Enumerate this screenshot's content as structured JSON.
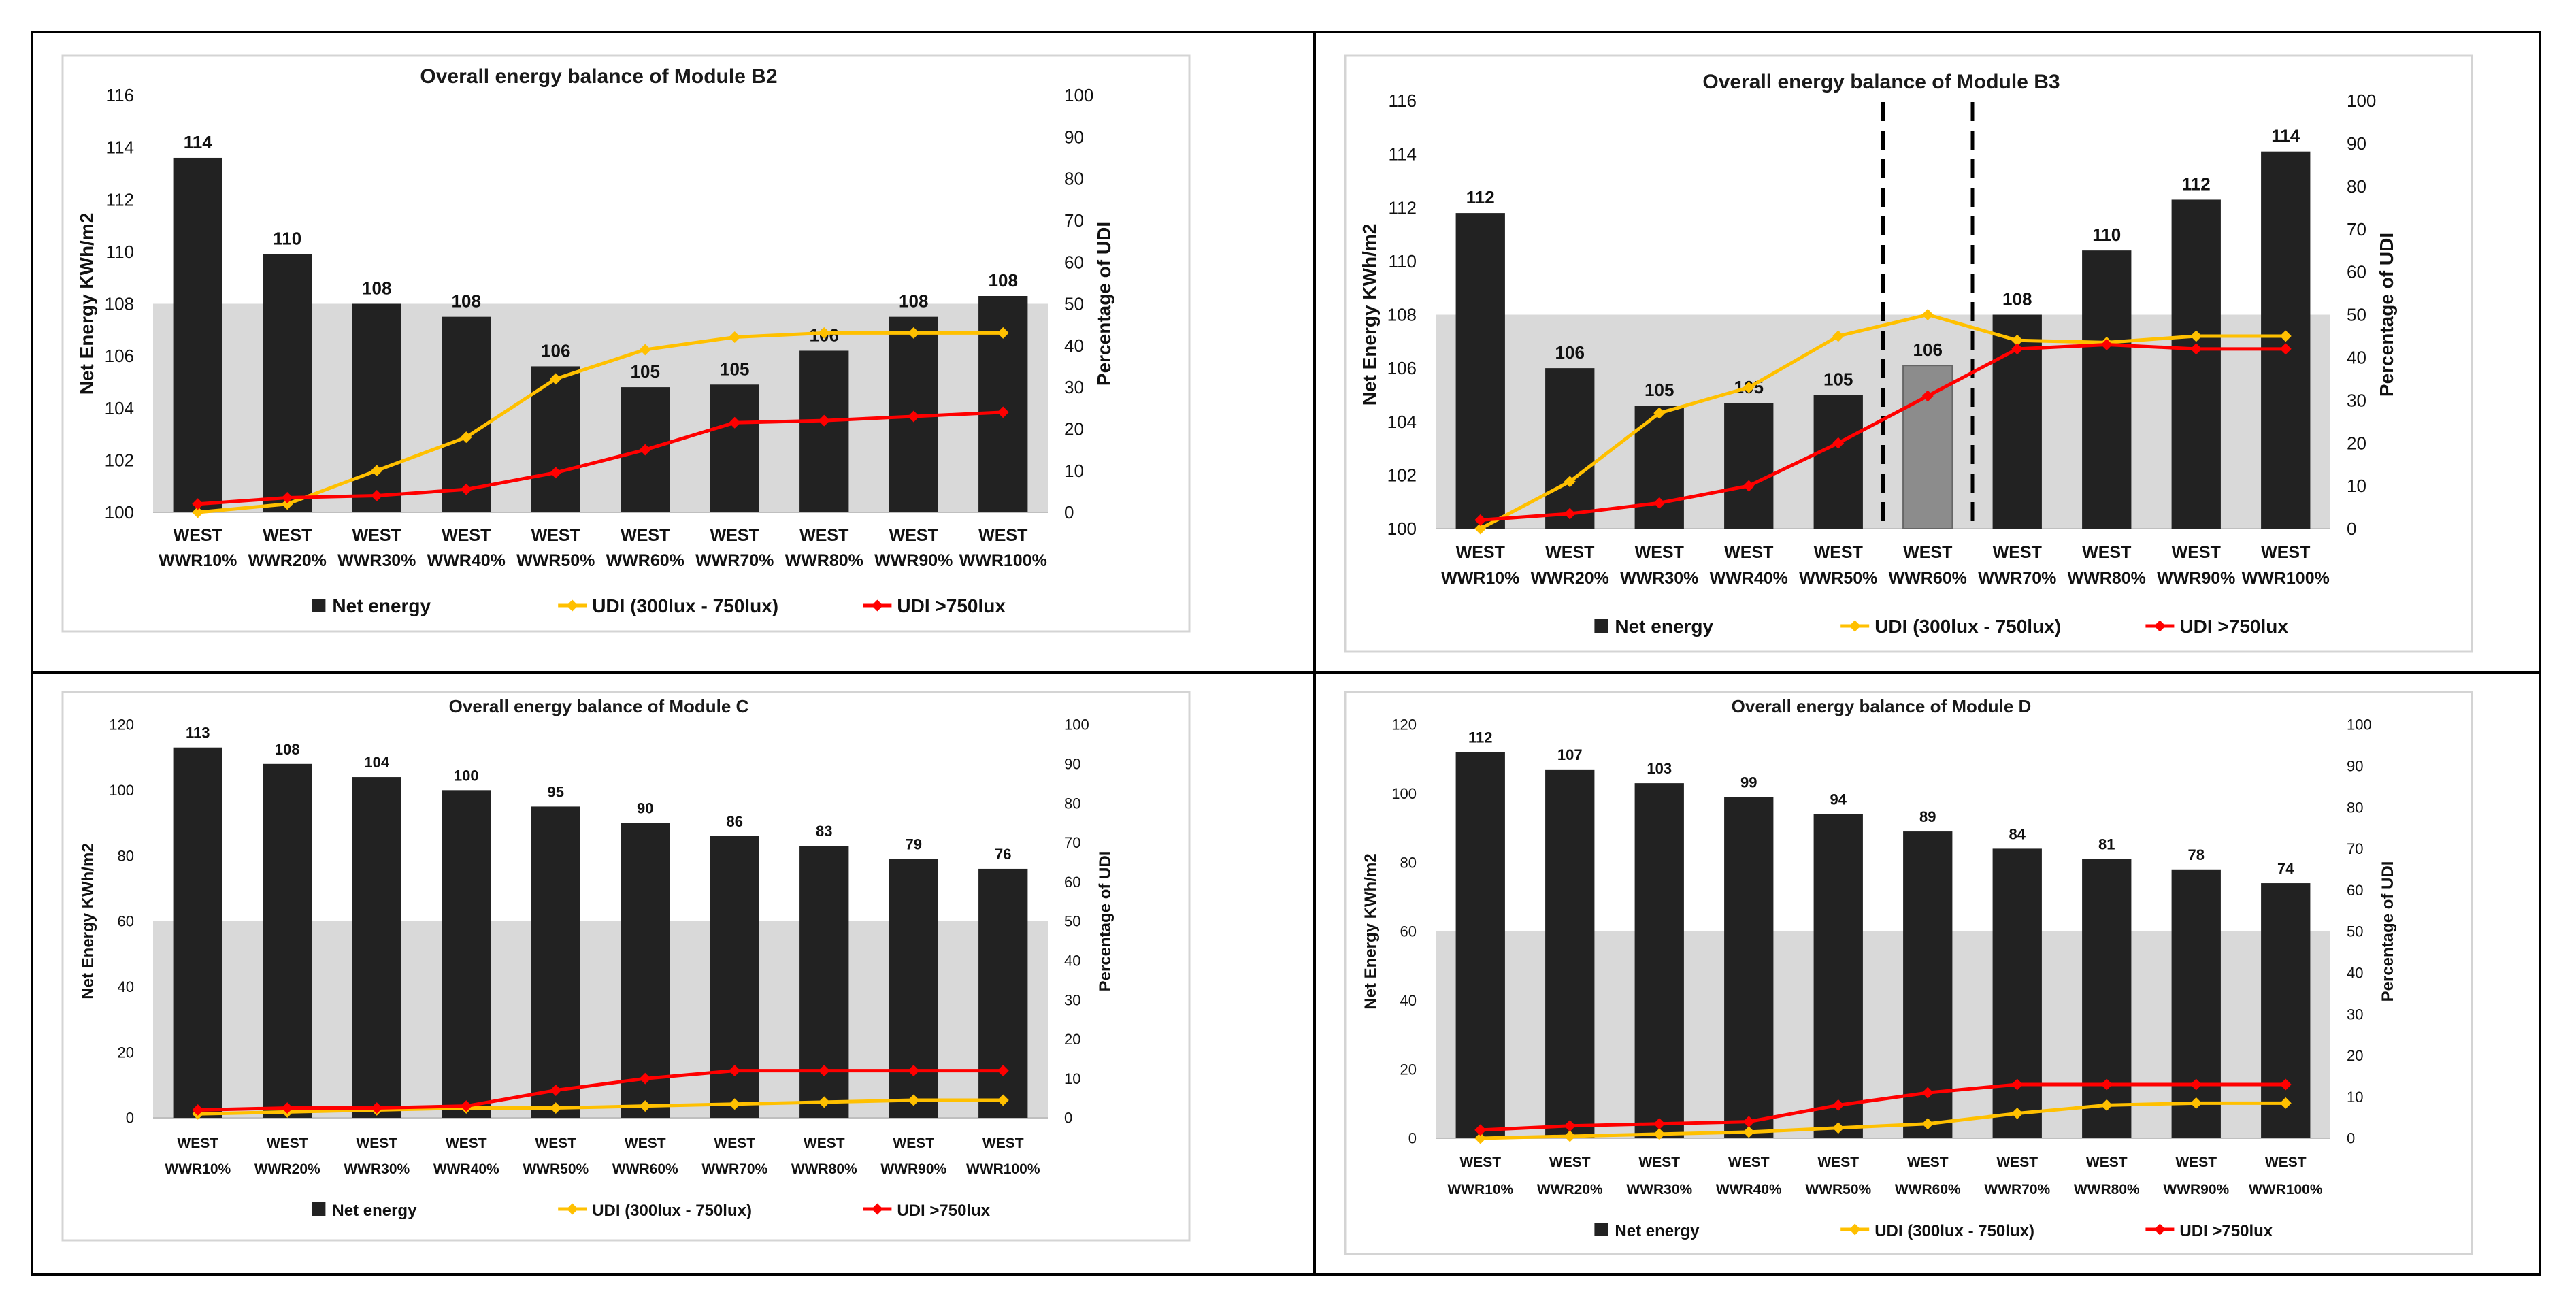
{
  "charts": [
    {
      "type": "bar+line",
      "title": "Overall energy balance of Module B2",
      "ylabel": "Net Energy KWh/m2",
      "y2label": "Percentage of UDI",
      "ylim": [
        100,
        116
      ],
      "yticks": [
        100,
        102,
        104,
        106,
        108,
        110,
        112,
        114,
        116
      ],
      "y2lim": [
        0,
        100
      ],
      "y2ticks": [
        0,
        10,
        20,
        30,
        40,
        50,
        60,
        70,
        80,
        90,
        100
      ],
      "shaded_band_top": 108,
      "categories": [
        [
          "WEST",
          "WWR10%"
        ],
        [
          "WEST",
          "WWR20%"
        ],
        [
          "WEST",
          "WWR30%"
        ],
        [
          "WEST",
          "WWR40%"
        ],
        [
          "WEST",
          "WWR50%"
        ],
        [
          "WEST",
          "WWR60%"
        ],
        [
          "WEST",
          "WWR70%"
        ],
        [
          "WEST",
          "WWR80%"
        ],
        [
          "WEST",
          "WWR90%"
        ],
        [
          "WEST",
          "WWR100%"
        ]
      ],
      "bar_values": [
        113.6,
        109.9,
        108.0,
        107.5,
        105.6,
        104.8,
        104.9,
        106.2,
        107.5,
        108.3
      ],
      "bar_labels": [
        "114",
        "110",
        "108",
        "108",
        "106",
        "105",
        "105",
        "106",
        "108",
        "108"
      ],
      "highlight_bar": -1,
      "dashed_between": [],
      "series": [
        {
          "name": "Net energy",
          "kind": "bar",
          "color": "#222222"
        },
        {
          "name": "UDI (300lux - 750lux)",
          "kind": "line",
          "color": "#ffc000",
          "axis": "y2",
          "values": [
            0,
            2,
            10,
            18,
            32,
            39,
            42,
            43,
            43,
            43
          ]
        },
        {
          "name": "UDI >750lux",
          "kind": "line",
          "color": "#ff0000",
          "axis": "y2",
          "values": [
            2,
            3.5,
            4,
            5.5,
            9.5,
            15,
            21.5,
            22,
            23,
            24
          ]
        }
      ],
      "legend": [
        "Net energy",
        "UDI (300lux - 750lux)",
        "UDI >750lux"
      ]
    },
    {
      "type": "bar+line",
      "title": "Overall energy balance of Module B3",
      "ylabel": "Net Energy KWh/m2",
      "y2label": "Percentage of UDI",
      "ylim": [
        100,
        116
      ],
      "yticks": [
        100,
        102,
        104,
        106,
        108,
        110,
        112,
        114,
        116
      ],
      "y2lim": [
        0,
        100
      ],
      "y2ticks": [
        0,
        10,
        20,
        30,
        40,
        50,
        60,
        70,
        80,
        90,
        100
      ],
      "shaded_band_top": 108,
      "categories": [
        [
          "WEST",
          "WWR10%"
        ],
        [
          "WEST",
          "WWR20%"
        ],
        [
          "WEST",
          "WWR30%"
        ],
        [
          "WEST",
          "WWR40%"
        ],
        [
          "WEST",
          "WWR50%"
        ],
        [
          "WEST",
          "WWR60%"
        ],
        [
          "WEST",
          "WWR70%"
        ],
        [
          "WEST",
          "WWR80%"
        ],
        [
          "WEST",
          "WWR90%"
        ],
        [
          "WEST",
          "WWR100%"
        ]
      ],
      "bar_values": [
        111.8,
        106.0,
        104.6,
        104.7,
        105.0,
        106.1,
        108.0,
        110.4,
        112.3,
        114.1
      ],
      "bar_labels": [
        "112",
        "106",
        "105",
        "105",
        "105",
        "106",
        "108",
        "110",
        "112",
        "114"
      ],
      "highlight_bar": 5,
      "dashed_between": [
        4,
        5
      ],
      "series": [
        {
          "name": "Net energy",
          "kind": "bar",
          "color": "#222222"
        },
        {
          "name": "UDI (300lux - 750lux)",
          "kind": "line",
          "color": "#ffc000",
          "axis": "y2",
          "values": [
            0,
            11,
            27,
            33,
            45,
            50,
            44,
            43.5,
            45,
            45
          ]
        },
        {
          "name": "UDI >750lux",
          "kind": "line",
          "color": "#ff0000",
          "axis": "y2",
          "values": [
            2,
            3.5,
            6,
            10,
            20,
            31,
            42,
            43,
            42,
            42
          ]
        }
      ],
      "legend": [
        "Net energy",
        "UDI (300lux - 750lux)",
        "UDI >750lux"
      ]
    },
    {
      "type": "bar+line",
      "title": "Overall energy balance of Module C",
      "ylabel": "Net Energy KWh/m2",
      "y2label": "Percentage of UDI",
      "ylim": [
        0,
        120
      ],
      "yticks": [
        0,
        20,
        40,
        60,
        80,
        100,
        120
      ],
      "y2lim": [
        0,
        100
      ],
      "y2ticks": [
        0,
        10,
        20,
        30,
        40,
        50,
        60,
        70,
        80,
        90,
        100
      ],
      "shaded_band_top": 60,
      "categories": [
        [
          "WEST",
          "WWR10%"
        ],
        [
          "WEST",
          "WWR20%"
        ],
        [
          "WEST",
          "WWR30%"
        ],
        [
          "WEST",
          "WWR40%"
        ],
        [
          "WEST",
          "WWR50%"
        ],
        [
          "WEST",
          "WWR60%"
        ],
        [
          "WEST",
          "WWR70%"
        ],
        [
          "WEST",
          "WWR80%"
        ],
        [
          "WEST",
          "WWR90%"
        ],
        [
          "WEST",
          "WWR100%"
        ]
      ],
      "bar_values": [
        113,
        108,
        104,
        100,
        95,
        90,
        86,
        83,
        79,
        76
      ],
      "bar_labels": [
        "113",
        "108",
        "104",
        "100",
        "95",
        "90",
        "86",
        "83",
        "79",
        "76"
      ],
      "highlight_bar": -1,
      "dashed_between": [],
      "series": [
        {
          "name": "Net energy",
          "kind": "bar",
          "color": "#222222"
        },
        {
          "name": "UDI (300lux - 750lux)",
          "kind": "line",
          "color": "#ffc000",
          "axis": "y2",
          "values": [
            1,
            1.5,
            2,
            2.5,
            2.5,
            3,
            3.5,
            4,
            4.5,
            4.5
          ]
        },
        {
          "name": "UDI >750lux",
          "kind": "line",
          "color": "#ff0000",
          "axis": "y2",
          "values": [
            2,
            2.5,
            2.5,
            3,
            7,
            10,
            12,
            12,
            12,
            12
          ]
        }
      ],
      "legend": [
        "Net energy",
        "UDI (300lux - 750lux)",
        "UDI >750lux"
      ]
    },
    {
      "type": "bar+line",
      "title": "Overall energy balance of Module D",
      "ylabel": "Net Energy KWh/m2",
      "y2label": "Percentage of UDI",
      "ylim": [
        0,
        120
      ],
      "yticks": [
        0,
        20,
        40,
        60,
        80,
        100,
        120
      ],
      "y2lim": [
        0,
        100
      ],
      "y2ticks": [
        0,
        10,
        20,
        30,
        40,
        50,
        60,
        70,
        80,
        90,
        100
      ],
      "shaded_band_top": 60,
      "categories": [
        [
          "WEST",
          "WWR10%"
        ],
        [
          "WEST",
          "WWR20%"
        ],
        [
          "WEST",
          "WWR30%"
        ],
        [
          "WEST",
          "WWR40%"
        ],
        [
          "WEST",
          "WWR50%"
        ],
        [
          "WEST",
          "WWR60%"
        ],
        [
          "WEST",
          "WWR70%"
        ],
        [
          "WEST",
          "WWR80%"
        ],
        [
          "WEST",
          "WWR90%"
        ],
        [
          "WEST",
          "WWR100%"
        ]
      ],
      "bar_values": [
        112,
        107,
        103,
        99,
        94,
        89,
        84,
        81,
        78,
        74
      ],
      "bar_labels": [
        "112",
        "107",
        "103",
        "99",
        "94",
        "89",
        "84",
        "81",
        "78",
        "74"
      ],
      "highlight_bar": -1,
      "dashed_between": [],
      "series": [
        {
          "name": "Net energy",
          "kind": "bar",
          "color": "#222222"
        },
        {
          "name": "UDI (300lux - 750lux)",
          "kind": "line",
          "color": "#ffc000",
          "axis": "y2",
          "values": [
            0,
            0.5,
            1,
            1.5,
            2.5,
            3.5,
            6,
            8,
            8.5,
            8.5
          ]
        },
        {
          "name": "UDI >750lux",
          "kind": "line",
          "color": "#ff0000",
          "axis": "y2",
          "values": [
            2,
            3,
            3.5,
            4,
            8,
            11,
            13,
            13,
            13,
            13
          ]
        }
      ],
      "legend": [
        "Net energy",
        "UDI (300lux - 750lux)",
        "UDI >750lux"
      ]
    }
  ]
}
